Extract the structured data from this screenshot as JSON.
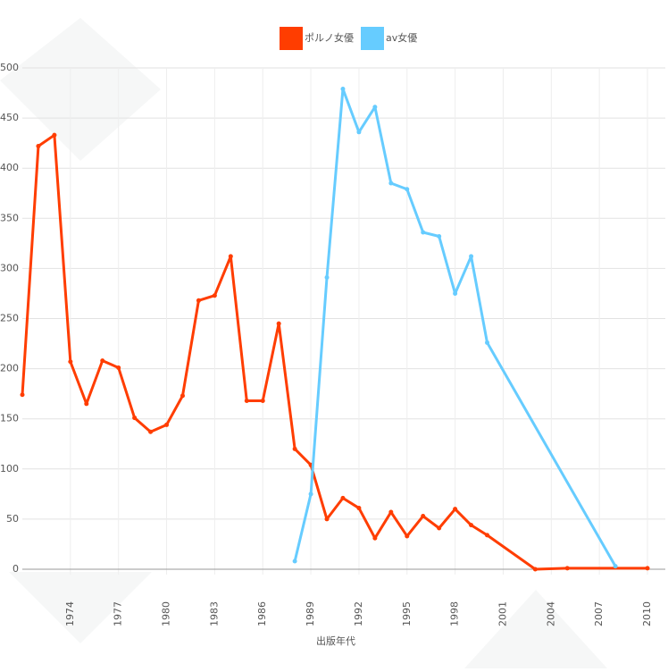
{
  "chart_data": {
    "type": "line",
    "x_label": "出版年代",
    "xlim": [
      1971,
      2010
    ],
    "xticks": [
      1974,
      1977,
      1980,
      1983,
      1986,
      1989,
      1992,
      1995,
      1998,
      2001,
      2004,
      2007,
      2010
    ],
    "ylim": [
      0,
      500
    ],
    "yticks": [
      0,
      50,
      100,
      150,
      200,
      250,
      300,
      350,
      400,
      450,
      500
    ],
    "grid": true,
    "series": [
      {
        "name": "ポルノ女優",
        "color": "#ff3d00",
        "x": [
          1971,
          1972,
          1973,
          1974,
          1975,
          1976,
          1977,
          1978,
          1979,
          1980,
          1981,
          1982,
          1983,
          1984,
          1985,
          1986,
          1987,
          1988,
          1989,
          1990,
          1991,
          1992,
          1993,
          1994,
          1995,
          1996,
          1997,
          1998,
          1999,
          2000,
          2003,
          2005,
          2010
        ],
        "values": [
          174,
          422,
          433,
          207,
          165,
          208,
          201,
          151,
          137,
          144,
          173,
          268,
          273,
          312,
          168,
          168,
          245,
          120,
          104,
          50,
          71,
          61,
          31,
          57,
          33,
          53,
          41,
          60,
          44,
          34,
          0,
          1,
          1
        ]
      },
      {
        "name": "av女優",
        "color": "#66ccff",
        "x": [
          1988,
          1989,
          1990,
          1991,
          1992,
          1993,
          1994,
          1995,
          1996,
          1997,
          1998,
          1999,
          2000,
          2008
        ],
        "values": [
          8,
          75,
          291,
          479,
          436,
          461,
          385,
          379,
          336,
          332,
          275,
          312,
          226,
          3
        ]
      }
    ]
  }
}
